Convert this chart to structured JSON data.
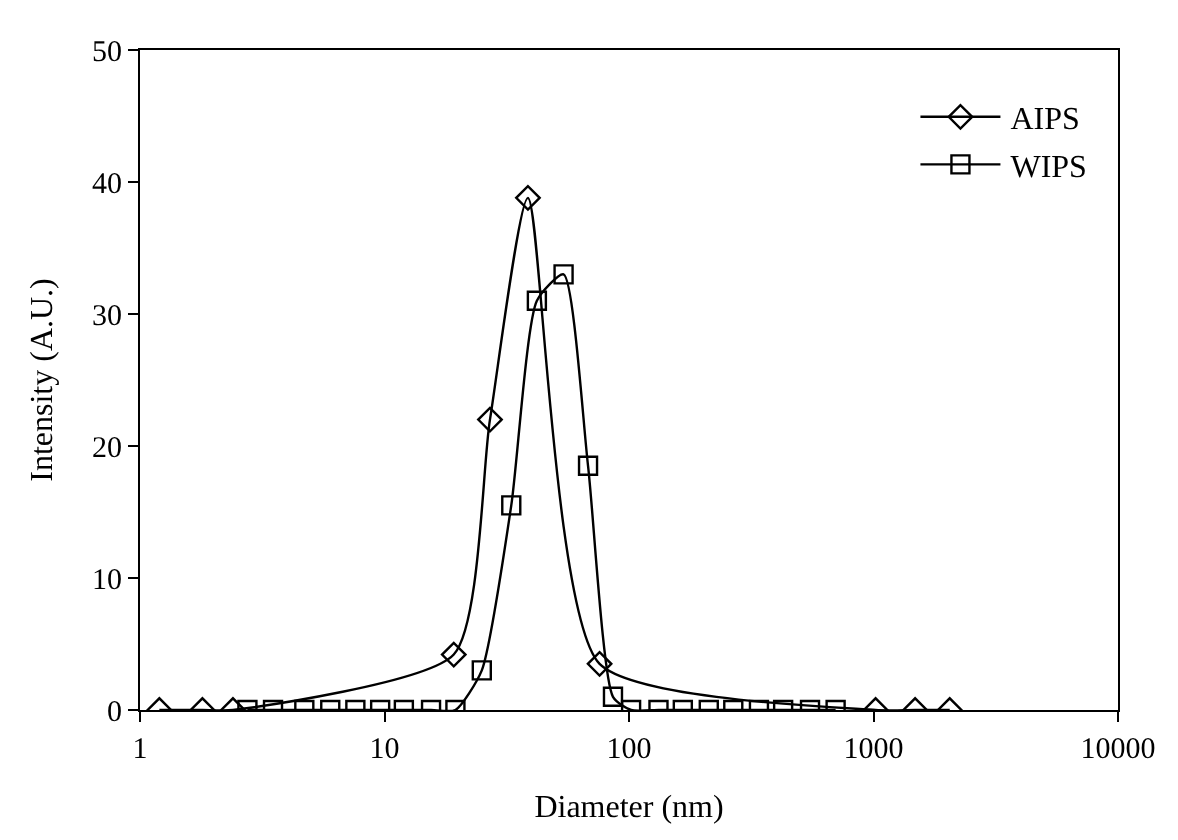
{
  "chart_data": {
    "type": "line",
    "xlabel": "Diameter (nm)",
    "ylabel": "Intensity (A.U.)",
    "log": "x",
    "xlim": [
      1,
      10000
    ],
    "xticks": [
      1,
      10,
      100,
      1000,
      10000
    ],
    "ylim": [
      0,
      50
    ],
    "yticks": [
      0,
      10,
      20,
      30,
      40,
      50
    ],
    "legend": "top right",
    "line_style": "solid",
    "series": [
      {
        "name": "AIPS",
        "color": "#000000",
        "marker": "diamond",
        "x": [
          1.2,
          1.8,
          2.4,
          19.2,
          27,
          38.6,
          75.8,
          1020,
          1480,
          2050
        ],
        "values": [
          0,
          0,
          0,
          4.2,
          22,
          38.8,
          3.5,
          0,
          0,
          0
        ]
      },
      {
        "name": "WIPS",
        "color": "#000000",
        "marker": "square",
        "x": [
          2.75,
          3.5,
          4.7,
          6.0,
          7.6,
          9.6,
          12,
          15.5,
          19.5,
          25,
          33,
          42,
          54,
          68,
          86,
          102,
          132,
          166,
          212,
          267,
          340,
          427,
          550,
          700
        ],
        "values": [
          0,
          0,
          0,
          0,
          0,
          0,
          0,
          0,
          0,
          3,
          15.5,
          31,
          33,
          18.5,
          1,
          0,
          0,
          0,
          0,
          0,
          0,
          0,
          0,
          0
        ]
      }
    ]
  }
}
